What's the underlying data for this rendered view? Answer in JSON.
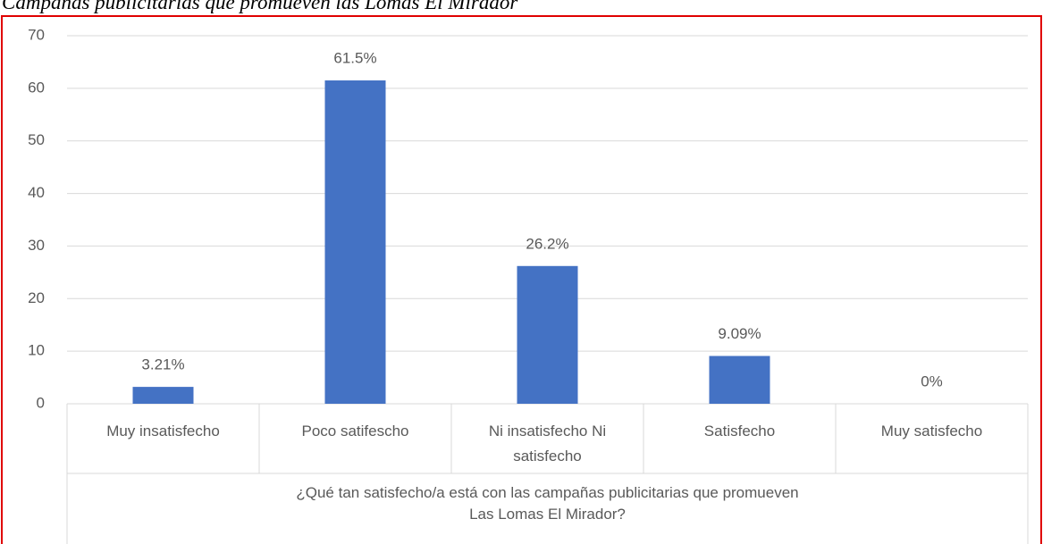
{
  "chart_data": {
    "type": "bar",
    "title": "Campañas publicitarias que promueven las Lomas El Mirador",
    "x_label": "¿Qué tan satisfecho/a está con las campañas  publicitarias  que promueven Las Lomas El Mirador?",
    "categories": [
      "Muy insatisfecho",
      "Poco satifescho",
      "Ni insatisfecho Ni satisfecho",
      "Satisfecho",
      "Muy satisfecho"
    ],
    "values": [
      3.21,
      61.5,
      26.2,
      9.09,
      0
    ],
    "value_labels": [
      "3.21%",
      "61.5%",
      "26.2%",
      "9.09%",
      "0%"
    ],
    "color": "#4472c4",
    "ylim": [
      0,
      70
    ],
    "yticks": [
      0,
      10,
      20,
      30,
      40,
      50,
      60,
      70
    ],
    "grid": true
  }
}
